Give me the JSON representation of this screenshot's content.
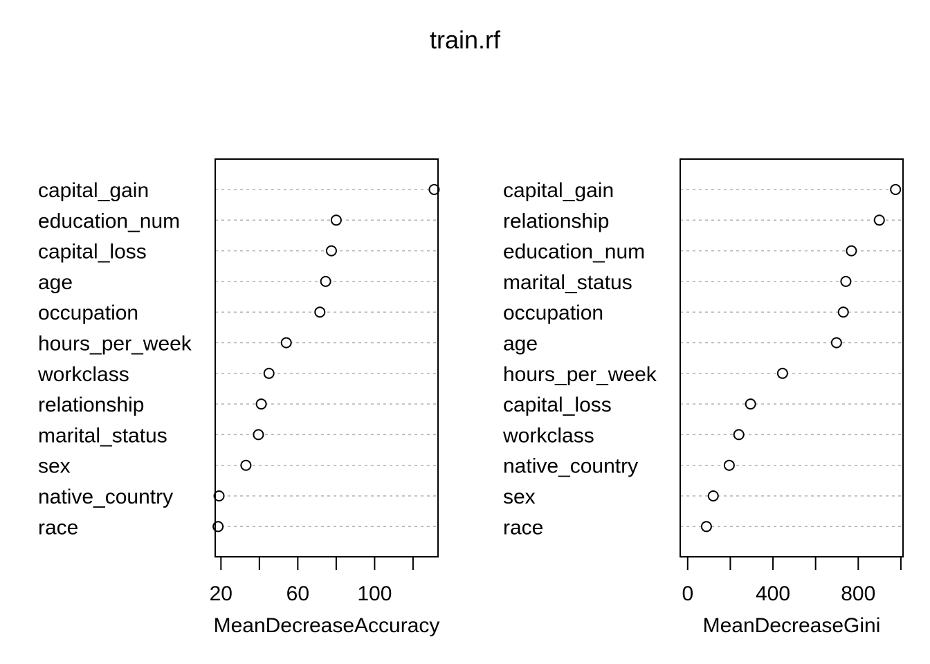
{
  "chart_data": {
    "type": "scatter",
    "title": "train.rf",
    "panels": [
      {
        "xlabel": "MeanDecreaseAccuracy",
        "xlim": [
          17,
          133
        ],
        "xticks": [
          20,
          40,
          60,
          80,
          100,
          120
        ],
        "xtick_labels": [
          "20",
          "",
          "60",
          "",
          "100",
          ""
        ],
        "categories": [
          "capital_gain",
          "education_num",
          "capital_loss",
          "age",
          "occupation",
          "hours_per_week",
          "workclass",
          "relationship",
          "marital_status",
          "sex",
          "native_country",
          "race"
        ],
        "values": [
          131,
          80,
          77.5,
          74.5,
          71.5,
          54,
          45,
          41,
          39.5,
          33,
          19,
          18.5
        ]
      },
      {
        "xlabel": "MeanDecreaseGini",
        "xlim": [
          -35,
          1010
        ],
        "xticks": [
          0,
          200,
          400,
          600,
          800,
          1000
        ],
        "xtick_labels": [
          "0",
          "",
          "400",
          "",
          "800",
          ""
        ],
        "categories": [
          "capital_gain",
          "relationship",
          "education_num",
          "marital_status",
          "occupation",
          "age",
          "hours_per_week",
          "capital_loss",
          "workclass",
          "native_country",
          "sex",
          "race"
        ],
        "values": [
          975,
          899,
          768,
          742,
          730,
          698,
          445,
          295,
          240,
          195,
          120,
          88
        ]
      }
    ]
  }
}
